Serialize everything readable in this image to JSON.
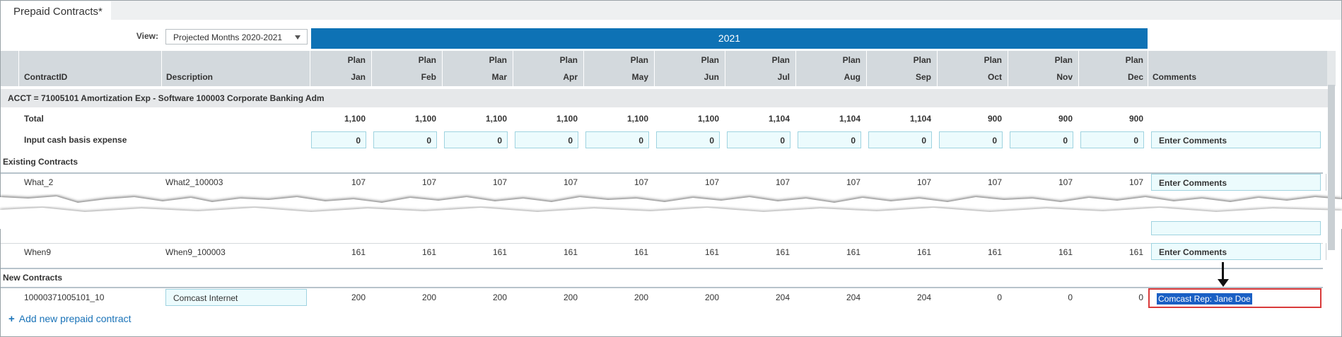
{
  "tab": {
    "title": "Prepaid Contracts*"
  },
  "view": {
    "label": "View:",
    "value": "Projected  Months 2020-2021"
  },
  "year": "2021",
  "columns": {
    "contract_id": "ContractID",
    "description": "Description",
    "comments": "Comments",
    "plan_label": "Plan",
    "months": [
      "Jan",
      "Feb",
      "Mar",
      "Apr",
      "May",
      "Jun",
      "Jul",
      "Aug",
      "Sep",
      "Oct",
      "Nov",
      "Dec"
    ]
  },
  "account_header": "ACCT = 71005101 Amortization Exp - Software 100003 Corporate Banking Adm",
  "total": {
    "label": "Total",
    "values": [
      "1,100",
      "1,100",
      "1,100",
      "1,100",
      "1,100",
      "1,100",
      "1,104",
      "1,104",
      "1,104",
      "900",
      "900",
      "900"
    ]
  },
  "input_row": {
    "label": "Input cash basis expense",
    "values": [
      "0",
      "0",
      "0",
      "0",
      "0",
      "0",
      "0",
      "0",
      "0",
      "0",
      "0",
      "0"
    ],
    "comments_placeholder": "Enter Comments"
  },
  "existing": {
    "label": "Existing Contracts",
    "rows": [
      {
        "id": "What_2",
        "desc": "What2_100003",
        "values": [
          "107",
          "107",
          "107",
          "107",
          "107",
          "107",
          "107",
          "107",
          "107",
          "107",
          "107",
          "107"
        ],
        "comment": "Enter Comments"
      },
      {
        "id": "When9",
        "desc": "When9_100003",
        "values": [
          "161",
          "161",
          "161",
          "161",
          "161",
          "161",
          "161",
          "161",
          "161",
          "161",
          "161",
          "161"
        ],
        "comment": "Enter Comments"
      }
    ]
  },
  "new_contracts": {
    "label": "New Contracts",
    "row": {
      "id": "10000371005101_10",
      "desc": "Comcast Internet",
      "values": [
        "200",
        "200",
        "200",
        "200",
        "200",
        "200",
        "204",
        "204",
        "204",
        "0",
        "0",
        "0"
      ],
      "comment": "Comcast Rep: Jane Doe"
    }
  },
  "add_link": "Add new prepaid contract",
  "colors": {
    "year_band": "#0e72b5",
    "header_bg": "#d3d9dd",
    "input_bg": "#ecfbfd",
    "highlight_border": "#d93a3a",
    "link": "#1a73b8"
  }
}
